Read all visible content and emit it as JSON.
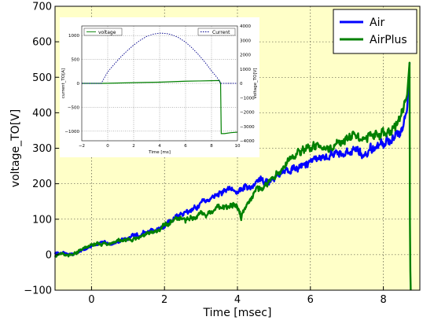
{
  "chart_data": [
    {
      "type": "line",
      "xlabel": "Time [msec]",
      "ylabel": "voltage_TO[V]",
      "xlim": [
        -1,
        9
      ],
      "ylim": [
        -100,
        700
      ],
      "xticks": [
        "0",
        "2",
        "4",
        "6",
        "8"
      ],
      "yticks": [
        "−100",
        "0",
        "100",
        "200",
        "300",
        "400",
        "500",
        "600",
        "700"
      ],
      "background_color": "#ffffc8",
      "grid": true,
      "legend_position": "top-right",
      "series": [
        {
          "name": "Air",
          "color": "#0000ff",
          "x": [
            -1.0,
            -0.5,
            0.0,
            0.5,
            1.0,
            1.5,
            2.0,
            2.5,
            3.0,
            3.5,
            4.0,
            4.5,
            5.0,
            5.5,
            6.0,
            6.5,
            7.0,
            7.5,
            8.0,
            8.3,
            8.5,
            8.65,
            8.72
          ],
          "y": [
            5,
            0,
            25,
            35,
            45,
            60,
            85,
            115,
            140,
            170,
            185,
            200,
            215,
            240,
            265,
            270,
            285,
            295,
            310,
            330,
            340,
            400,
            540
          ]
        },
        {
          "name": "AirPlus",
          "color": "#008000",
          "x": [
            -1.0,
            -0.5,
            0.0,
            0.5,
            1.0,
            1.5,
            2.0,
            2.5,
            3.0,
            3.5,
            4.0,
            4.1,
            4.5,
            5.0,
            5.5,
            6.0,
            6.5,
            7.0,
            7.5,
            8.0,
            8.3,
            8.5,
            8.65,
            8.72,
            8.73,
            8.75
          ],
          "y": [
            0,
            0,
            25,
            35,
            40,
            55,
            80,
            100,
            110,
            135,
            140,
            110,
            180,
            220,
            275,
            300,
            305,
            325,
            335,
            340,
            350,
            400,
            450,
            545,
            0,
            -100
          ]
        }
      ]
    },
    {
      "type": "line",
      "xlabel": "Time [ms]",
      "ylabel": "current_TO[A]",
      "ylabel_right": "voltage_TO[V]",
      "xlim": [
        -2,
        10
      ],
      "ylim": [
        -1200,
        1200
      ],
      "ylim_right": [
        -4000,
        4000
      ],
      "xticks": [
        "−2",
        "0",
        "2",
        "4",
        "6",
        "8",
        "10"
      ],
      "yticks": [
        "−1000",
        "−500",
        "0",
        "500",
        "1000"
      ],
      "yticks_right": [
        "−4000",
        "−3000",
        "−2000",
        "−1000",
        "0",
        "1000",
        "2000",
        "3000",
        "4000"
      ],
      "grid": true,
      "series": [
        {
          "name": "voltage",
          "axis": "left",
          "color": "#008000",
          "style": "solid",
          "x": [
            -2.0,
            -0.5,
            0.0,
            1.0,
            2.0,
            3.0,
            4.0,
            5.0,
            6.0,
            7.0,
            8.0,
            8.6,
            8.7,
            8.75,
            9.0,
            9.5,
            10.0
          ],
          "y": [
            0,
            0,
            2,
            8,
            15,
            20,
            25,
            35,
            45,
            50,
            55,
            60,
            0,
            -1050,
            -1050,
            -1030,
            -1020
          ]
        },
        {
          "name": "Current",
          "axis": "right",
          "color": "#00008b",
          "style": "dashed",
          "x": [
            -2.0,
            -0.5,
            0.0,
            0.5,
            1.0,
            1.5,
            2.0,
            2.5,
            3.0,
            3.5,
            4.0,
            4.5,
            5.0,
            5.5,
            6.0,
            6.5,
            7.0,
            7.5,
            8.0,
            8.5,
            8.7,
            9.0,
            10.0
          ],
          "y": [
            0,
            0,
            800,
            1330,
            1830,
            2270,
            2670,
            3000,
            3270,
            3430,
            3500,
            3480,
            3370,
            3170,
            2870,
            2470,
            2000,
            1470,
            870,
            330,
            0,
            0,
            0
          ]
        }
      ]
    }
  ]
}
